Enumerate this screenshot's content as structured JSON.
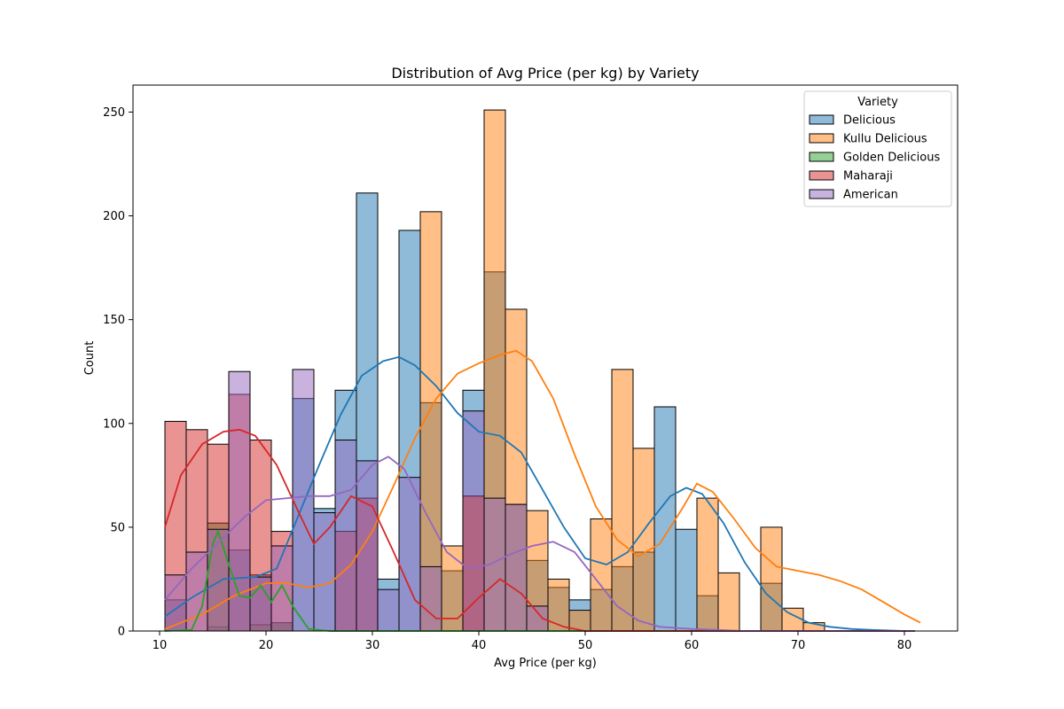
{
  "chart_data": {
    "type": "bar",
    "subtype": "overlaid-histogram-with-kde",
    "title": "Distribution of Avg Price (per kg) by Variety",
    "xlabel": "Avg Price (per kg)",
    "ylabel": "Count",
    "xlim": [
      7.5,
      85
    ],
    "ylim": [
      0,
      263
    ],
    "xticks": [
      10,
      20,
      30,
      40,
      50,
      60,
      70,
      80
    ],
    "yticks": [
      0,
      50,
      100,
      150,
      200,
      250
    ],
    "legend": {
      "title": "Variety",
      "placement": "top-right"
    },
    "grid": false,
    "bin_edges": [
      10.5,
      12.5,
      14.5,
      16.5,
      18.5,
      20.5,
      22.5,
      24.5,
      26.5,
      28.5,
      30.5,
      32.5,
      34.5,
      36.5,
      38.5,
      40.5,
      42.5,
      44.5,
      46.5,
      48.5,
      50.5,
      52.5,
      54.5,
      56.5,
      58.5,
      60.5,
      62.5,
      64.5,
      66.5,
      68.5,
      70.5,
      72.5,
      74.5,
      76.5,
      78.5,
      80.5
    ],
    "series": [
      {
        "name": "Delicious",
        "color": "#1f77b4",
        "counts": [
          15,
          0,
          2,
          39,
          27,
          4,
          112,
          59,
          116,
          211,
          25,
          193,
          110,
          29,
          116,
          173,
          61,
          34,
          21,
          15,
          20,
          31,
          38,
          108,
          49,
          17,
          0,
          0,
          23,
          0,
          0,
          0,
          0,
          0,
          0
        ],
        "kde": [
          [
            10.5,
            7
          ],
          [
            13,
            16
          ],
          [
            16,
            25
          ],
          [
            19,
            26
          ],
          [
            21,
            30
          ],
          [
            23,
            55
          ],
          [
            25,
            80
          ],
          [
            27,
            104
          ],
          [
            29,
            123
          ],
          [
            31,
            130
          ],
          [
            32.5,
            132
          ],
          [
            34,
            128
          ],
          [
            36,
            118
          ],
          [
            38,
            105
          ],
          [
            40,
            96
          ],
          [
            42,
            94
          ],
          [
            44,
            86
          ],
          [
            46,
            68
          ],
          [
            48,
            50
          ],
          [
            50,
            35
          ],
          [
            52,
            32
          ],
          [
            54,
            38
          ],
          [
            56,
            52
          ],
          [
            58,
            65
          ],
          [
            59.5,
            69
          ],
          [
            61,
            66
          ],
          [
            63,
            52
          ],
          [
            65,
            33
          ],
          [
            67,
            18
          ],
          [
            69,
            9
          ],
          [
            71,
            4
          ],
          [
            73,
            2
          ],
          [
            75,
            1
          ],
          [
            77,
            0.5
          ],
          [
            80,
            0
          ]
        ]
      },
      {
        "name": "Kullu Delicious",
        "color": "#ff7f0e",
        "counts": [
          0,
          0,
          0,
          0,
          0,
          0,
          0,
          0,
          0,
          0,
          0,
          0,
          202,
          41,
          65,
          251,
          155,
          58,
          25,
          10,
          54,
          126,
          88,
          0,
          0,
          64,
          28,
          0,
          50,
          11,
          4,
          0,
          0,
          0,
          0
        ],
        "kde": [
          [
            10.5,
            1
          ],
          [
            14,
            8
          ],
          [
            17,
            17
          ],
          [
            20,
            23
          ],
          [
            22,
            23
          ],
          [
            24,
            21
          ],
          [
            26,
            23
          ],
          [
            28,
            32
          ],
          [
            30,
            48
          ],
          [
            32,
            70
          ],
          [
            34,
            93
          ],
          [
            36,
            112
          ],
          [
            38,
            124
          ],
          [
            40,
            129
          ],
          [
            42,
            133
          ],
          [
            43.5,
            135
          ],
          [
            45,
            130
          ],
          [
            47,
            112
          ],
          [
            49,
            85
          ],
          [
            51,
            60
          ],
          [
            53,
            44
          ],
          [
            55,
            36
          ],
          [
            57,
            42
          ],
          [
            59,
            58
          ],
          [
            60.5,
            71
          ],
          [
            62,
            67
          ],
          [
            64,
            54
          ],
          [
            66,
            40
          ],
          [
            68,
            31
          ],
          [
            70,
            29
          ],
          [
            72,
            27
          ],
          [
            74,
            24
          ],
          [
            76,
            20
          ],
          [
            78,
            14
          ],
          [
            80,
            8
          ],
          [
            81.5,
            4
          ]
        ]
      },
      {
        "name": "Golden Delicious",
        "color": "#2ca02c",
        "counts": [
          0,
          0,
          52,
          0,
          3,
          4,
          0,
          0,
          0,
          0,
          0,
          0,
          0,
          0,
          0,
          0,
          0,
          0,
          0,
          0,
          0,
          0,
          0,
          0,
          0,
          0,
          0,
          0,
          0,
          0,
          0,
          0,
          0,
          0,
          0
        ],
        "kde": [
          [
            10.5,
            0
          ],
          [
            13,
            0.5
          ],
          [
            14,
            12
          ],
          [
            15,
            42
          ],
          [
            15.5,
            48
          ],
          [
            16.5,
            32
          ],
          [
            17.5,
            17
          ],
          [
            18.5,
            16
          ],
          [
            19.5,
            22
          ],
          [
            20.5,
            14
          ],
          [
            21.5,
            22
          ],
          [
            22.5,
            12
          ],
          [
            24,
            1
          ],
          [
            26,
            0
          ],
          [
            30,
            0
          ],
          [
            40,
            0
          ],
          [
            50,
            0
          ],
          [
            60,
            0
          ],
          [
            70,
            0
          ],
          [
            81,
            0
          ]
        ]
      },
      {
        "name": "Maharaji",
        "color": "#d62728",
        "counts": [
          101,
          97,
          90,
          114,
          92,
          48,
          0,
          0,
          48,
          64,
          0,
          0,
          0,
          0,
          65,
          0,
          0,
          0,
          0,
          0,
          0,
          0,
          0,
          0,
          0,
          0,
          0,
          0,
          0,
          0,
          0,
          0,
          0,
          0,
          0
        ],
        "kde": [
          [
            10.5,
            50
          ],
          [
            12,
            75
          ],
          [
            14,
            90
          ],
          [
            16,
            96
          ],
          [
            17.5,
            97
          ],
          [
            19,
            94
          ],
          [
            21,
            80
          ],
          [
            23,
            58
          ],
          [
            24.5,
            42
          ],
          [
            26,
            50
          ],
          [
            28,
            65
          ],
          [
            30,
            60
          ],
          [
            32,
            38
          ],
          [
            34,
            15
          ],
          [
            36,
            6
          ],
          [
            38,
            6
          ],
          [
            40,
            16
          ],
          [
            42,
            25
          ],
          [
            44,
            18
          ],
          [
            46,
            6
          ],
          [
            48,
            2
          ],
          [
            50,
            0
          ],
          [
            55,
            0
          ],
          [
            60,
            0
          ],
          [
            70,
            0
          ],
          [
            81,
            0
          ]
        ]
      },
      {
        "name": "American",
        "color": "#9467bd",
        "counts": [
          27,
          38,
          49,
          125,
          26,
          41,
          126,
          57,
          92,
          82,
          20,
          74,
          31,
          0,
          106,
          64,
          61,
          12,
          0,
          0,
          0,
          0,
          0,
          0,
          0,
          0,
          0,
          0,
          0,
          0,
          0,
          0,
          0,
          0,
          0
        ],
        "kde": [
          [
            10.5,
            15
          ],
          [
            13,
            30
          ],
          [
            16,
            45
          ],
          [
            18,
            55
          ],
          [
            20,
            63
          ],
          [
            22,
            64
          ],
          [
            24,
            65
          ],
          [
            26,
            65
          ],
          [
            28,
            68
          ],
          [
            30,
            80
          ],
          [
            31.5,
            84
          ],
          [
            33,
            78
          ],
          [
            35,
            57
          ],
          [
            37,
            38
          ],
          [
            39,
            30
          ],
          [
            41,
            32
          ],
          [
            43,
            37
          ],
          [
            45,
            41
          ],
          [
            47,
            43
          ],
          [
            49,
            38
          ],
          [
            51,
            25
          ],
          [
            53,
            12
          ],
          [
            55,
            5
          ],
          [
            57,
            2
          ],
          [
            60,
            1
          ],
          [
            65,
            0
          ],
          [
            70,
            0
          ],
          [
            81,
            0
          ]
        ]
      }
    ]
  }
}
